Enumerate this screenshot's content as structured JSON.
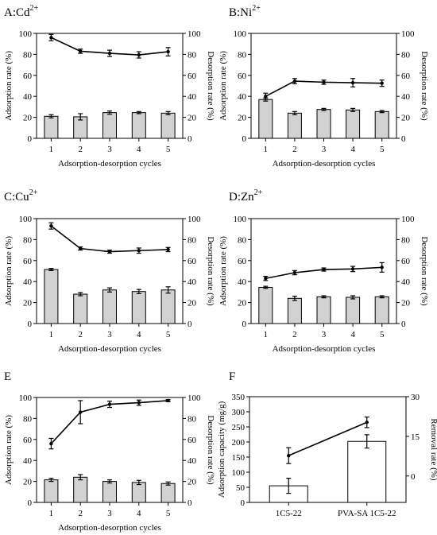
{
  "figure": {
    "panel_count": 6
  },
  "chart_data": [
    {
      "type": "bar",
      "panel": "A",
      "title": "A:Cd",
      "title_sup": "2+",
      "xlabel": "Adsorption-desorption cycles",
      "ylabel": "Adsorption rate (%)",
      "y2label": "Desorption rate (%)",
      "categories": [
        "1",
        "2",
        "3",
        "4",
        "5"
      ],
      "ylim": [
        0,
        100
      ],
      "y2lim": [
        0,
        100
      ],
      "yticks": [
        "0",
        "20",
        "40",
        "60",
        "80",
        "100"
      ],
      "y2ticks": [
        "0",
        "20",
        "40",
        "60",
        "80",
        "100"
      ],
      "series": [
        {
          "kind": "bar",
          "axis": "left",
          "values": [
            21,
            20.5,
            24.5,
            24.5,
            24
          ],
          "errors": [
            1.5,
            3,
            1.5,
            1,
            1.5
          ]
        },
        {
          "kind": "line",
          "axis": "right",
          "values": [
            96,
            83,
            81,
            79.5,
            82.5
          ],
          "errors": [
            3,
            2,
            3,
            3,
            4
          ]
        }
      ]
    },
    {
      "type": "bar",
      "panel": "B",
      "title": "B:Ni",
      "title_sup": "2+",
      "xlabel": "Adsorption-desorption cycles",
      "ylabel": "Adsorption rate (%)",
      "y2label": "Desorption rate (%)",
      "categories": [
        "1",
        "2",
        "3",
        "4",
        "5"
      ],
      "ylim": [
        0,
        100
      ],
      "y2lim": [
        0,
        100
      ],
      "yticks": [
        "0",
        "20",
        "40",
        "60",
        "80",
        "100"
      ],
      "y2ticks": [
        "0",
        "20",
        "40",
        "60",
        "80",
        "100"
      ],
      "series": [
        {
          "kind": "bar",
          "axis": "left",
          "values": [
            37,
            24,
            27.5,
            27,
            25.5
          ],
          "errors": [
            1.5,
            1.5,
            1,
            1.5,
            1
          ]
        },
        {
          "kind": "line",
          "axis": "right",
          "values": [
            40,
            54.5,
            53.5,
            53,
            52.5
          ],
          "errors": [
            3,
            2.5,
            2,
            4,
            3
          ]
        }
      ]
    },
    {
      "type": "bar",
      "panel": "C",
      "title": "C:Cu",
      "title_sup": "2+",
      "xlabel": "Adsorption-desorption cycles",
      "ylabel": "Adsorption rate (%)",
      "y2label": "Desorption rate (%)",
      "categories": [
        "1",
        "2",
        "3",
        "4",
        "5"
      ],
      "ylim": [
        0,
        100
      ],
      "y2lim": [
        0,
        100
      ],
      "yticks": [
        "0",
        "20",
        "40",
        "60",
        "80",
        "100"
      ],
      "y2ticks": [
        "0",
        "20",
        "40",
        "60",
        "80",
        "100"
      ],
      "series": [
        {
          "kind": "bar",
          "axis": "left",
          "values": [
            51.5,
            28,
            32,
            30.5,
            32
          ],
          "errors": [
            1,
            1.5,
            2,
            2,
            3
          ]
        },
        {
          "kind": "line",
          "axis": "right",
          "values": [
            93,
            71.5,
            68.5,
            69.5,
            70.5
          ],
          "errors": [
            3,
            1.5,
            1.5,
            2.5,
            2
          ]
        }
      ]
    },
    {
      "type": "bar",
      "panel": "D",
      "title": "D:Zn",
      "title_sup": "2+",
      "xlabel": "Adsorption-desorption cycles",
      "ylabel": "Adsorption rate (%)",
      "y2label": "Desorption rate (%)",
      "categories": [
        "1",
        "2",
        "3",
        "4",
        "5"
      ],
      "ylim": [
        0,
        100
      ],
      "y2lim": [
        0,
        100
      ],
      "yticks": [
        "0",
        "20",
        "40",
        "60",
        "80",
        "100"
      ],
      "y2ticks": [
        "0",
        "20",
        "40",
        "60",
        "80",
        "100"
      ],
      "series": [
        {
          "kind": "bar",
          "axis": "left",
          "values": [
            34.5,
            24,
            25.5,
            25,
            25.5
          ],
          "errors": [
            1,
            2,
            1,
            1.5,
            1
          ]
        },
        {
          "kind": "line",
          "axis": "right",
          "values": [
            43,
            48.5,
            51.5,
            52,
            53.5
          ],
          "errors": [
            2,
            2,
            1.5,
            2.5,
            4.5
          ]
        }
      ]
    },
    {
      "type": "bar",
      "panel": "E",
      "title": "E",
      "title_sup": "",
      "xlabel": "Adsorption-desorption cycles",
      "ylabel": "Adsorption rate (%)",
      "y2label": "Desorption rate (%)",
      "categories": [
        "1",
        "2",
        "3",
        "4",
        "5"
      ],
      "ylim": [
        0,
        100
      ],
      "y2lim": [
        0,
        100
      ],
      "yticks": [
        "0",
        "20",
        "40",
        "60",
        "80",
        "100"
      ],
      "y2ticks": [
        "0",
        "20",
        "40",
        "60",
        "80",
        "100"
      ],
      "series": [
        {
          "kind": "bar",
          "axis": "left",
          "values": [
            21.5,
            24,
            20,
            19,
            18
          ],
          "errors": [
            1.5,
            2.5,
            1.5,
            2,
            1.5
          ]
        },
        {
          "kind": "line",
          "axis": "right",
          "values": [
            56,
            86,
            93.5,
            95,
            97
          ],
          "errors": [
            5,
            11,
            3,
            2.5,
            1
          ]
        }
      ]
    },
    {
      "type": "bar",
      "panel": "F",
      "title": "F",
      "title_sup": "",
      "xlabel": "",
      "ylabel": "Adsorption capacity (mg/g)",
      "y2label": "Removal rate (%)",
      "categories": [
        "1C5-22",
        "PVA-SA 1C5-22"
      ],
      "ylim": [
        0,
        350
      ],
      "y2lim": [
        -10,
        30
      ],
      "yticks": [
        "0",
        "50",
        "100",
        "150",
        "200",
        "250",
        "300",
        "350"
      ],
      "y2ticks": [
        "0",
        "15",
        "30"
      ],
      "series": [
        {
          "kind": "bar",
          "axis": "left",
          "values": [
            55,
            202
          ],
          "errors": [
            25,
            22
          ]
        },
        {
          "kind": "line",
          "axis": "right",
          "values": [
            7.7,
            20.3
          ],
          "errors": [
            3,
            2
          ]
        }
      ]
    }
  ]
}
